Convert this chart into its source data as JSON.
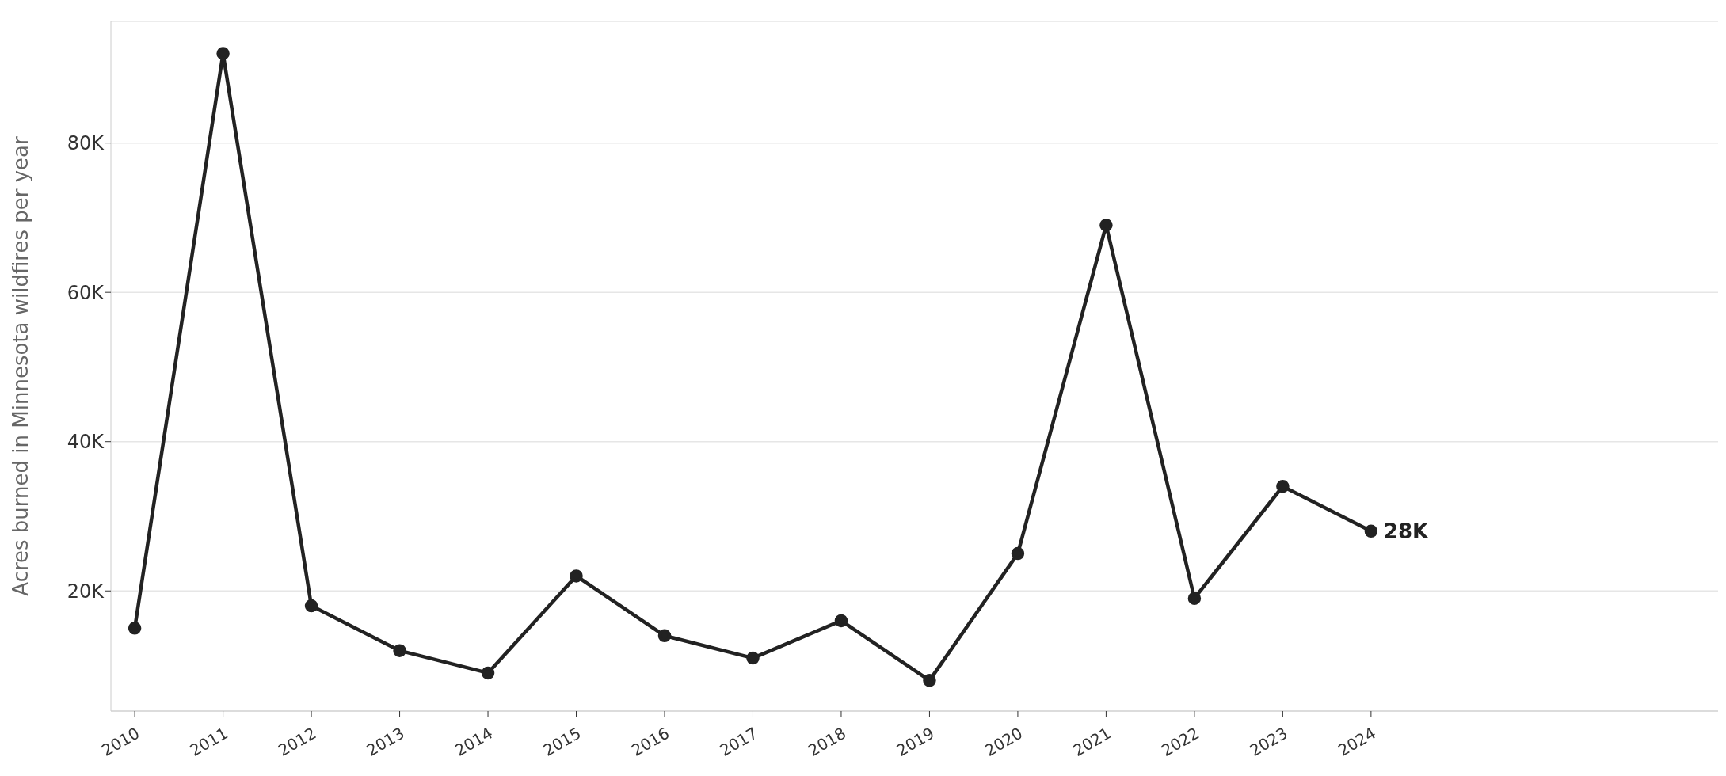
{
  "chart_data": {
    "type": "line",
    "ylabel": "Acres burned in Minnesota wildfires per year",
    "x": [
      2010,
      2011,
      2012,
      2013,
      2014,
      2015,
      2016,
      2017,
      2018,
      2019,
      2020,
      2021,
      2022,
      2023,
      2024
    ],
    "series": [
      {
        "color": "#222222",
        "values": [
          15000,
          92000,
          18000,
          12000,
          9000,
          22000,
          14000,
          11000,
          16000,
          8000,
          25000,
          69000,
          19000,
          34000,
          28000
        ]
      }
    ],
    "xlim": [
      2009.73,
      2027.93
    ],
    "xticks": [
      2010,
      2011,
      2012,
      2013,
      2014,
      2015,
      2016,
      2017,
      2018,
      2019,
      2020,
      2021,
      2022,
      2023,
      2024
    ],
    "ylim": [
      3900,
      96300
    ],
    "yticks": [
      {
        "value": 20000,
        "label": "20K"
      },
      {
        "value": 40000,
        "label": "40K"
      },
      {
        "value": 60000,
        "label": "60K"
      },
      {
        "value": 80000,
        "label": "80K"
      }
    ],
    "grid": "y",
    "marker": "circle",
    "line_style": "solid",
    "legend": false,
    "annotations": [
      {
        "text": "28K",
        "x": 2024,
        "y": 28000
      }
    ]
  }
}
